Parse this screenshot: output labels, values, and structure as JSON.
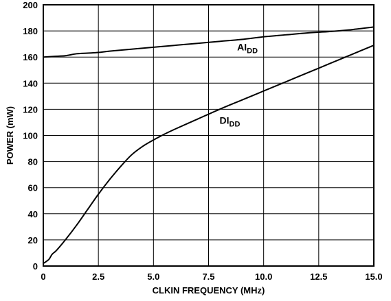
{
  "chart_data": {
    "type": "line",
    "title": "",
    "xlabel": "CLKIN FREQUENCY  (MHz)",
    "ylabel": "POWER  (mW)",
    "xlim": [
      0,
      15
    ],
    "ylim": [
      0,
      200
    ],
    "grid": true,
    "legend": "none",
    "x_ticks": [
      "0",
      "2.5",
      "5.0",
      "7.5",
      "10.0",
      "12.5",
      "15.0"
    ],
    "x_tick_values": [
      0,
      2.5,
      5.0,
      7.5,
      10.0,
      12.5,
      15.0
    ],
    "y_ticks": [
      "0",
      "20",
      "40",
      "60",
      "80",
      "100",
      "120",
      "140",
      "160",
      "180",
      "200"
    ],
    "y_tick_values": [
      0,
      20,
      40,
      60,
      80,
      100,
      120,
      140,
      160,
      180,
      200
    ],
    "series": [
      {
        "name": "AIDD",
        "label_main": "AI",
        "label_sub": "DD",
        "color": "#000000",
        "label_at": [
          8.8,
          165
        ],
        "points": [
          [
            0,
            160
          ],
          [
            0.5,
            160.5
          ],
          [
            1.0,
            161
          ],
          [
            1.5,
            162.5
          ],
          [
            2.0,
            163
          ],
          [
            2.5,
            163.5
          ],
          [
            3.0,
            164.5
          ],
          [
            4.0,
            166
          ],
          [
            5.0,
            167.5
          ],
          [
            6.0,
            169
          ],
          [
            7.0,
            170.5
          ],
          [
            8.0,
            172
          ],
          [
            9.0,
            173.5
          ],
          [
            10.0,
            175.5
          ],
          [
            11.0,
            177
          ],
          [
            12.0,
            178.5
          ],
          [
            13.0,
            179.5
          ],
          [
            14.0,
            181
          ],
          [
            15.0,
            183
          ]
        ]
      },
      {
        "name": "DIDD",
        "label_main": "DI",
        "label_sub": "DD",
        "color": "#000000",
        "label_at": [
          8.0,
          109
        ],
        "points": [
          [
            0,
            2
          ],
          [
            0.25,
            5
          ],
          [
            0.4,
            9
          ],
          [
            0.6,
            12
          ],
          [
            1.0,
            20
          ],
          [
            1.5,
            31
          ],
          [
            2.0,
            43
          ],
          [
            2.5,
            55
          ],
          [
            3.0,
            66
          ],
          [
            3.5,
            76
          ],
          [
            4.0,
            85
          ],
          [
            4.5,
            91.5
          ],
          [
            5.0,
            96.5
          ],
          [
            5.5,
            101
          ],
          [
            6.0,
            105
          ],
          [
            7.0,
            112.5
          ],
          [
            8.0,
            120
          ],
          [
            9.0,
            127
          ],
          [
            10.0,
            134
          ],
          [
            11.0,
            141
          ],
          [
            12.0,
            148
          ],
          [
            13.0,
            155
          ],
          [
            14.0,
            162
          ],
          [
            15.0,
            169
          ]
        ]
      }
    ]
  }
}
